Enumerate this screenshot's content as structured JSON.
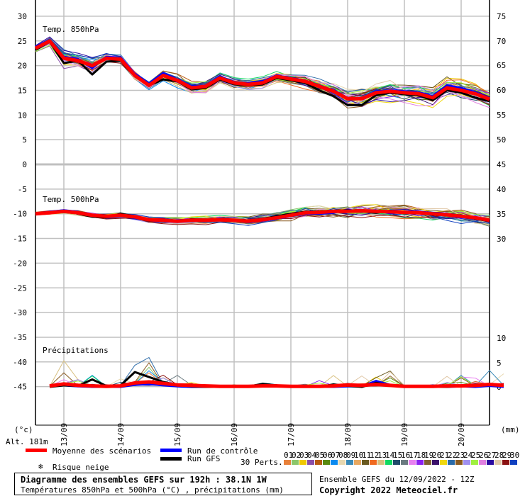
{
  "chart_data": {
    "type": "line",
    "title": "Diagramme des ensembles GEFS sur 192h : 38.1N 1W",
    "subtitle": "Températures 850hPa et 500hPa (°C) , précipitations (mm)",
    "run_info": "Ensemble GEFS du 12/09/2022 - 12Z",
    "copyright": "Copyright 2022 Meteociel.fr",
    "altitude": "Alt. 181m",
    "left_unit": "(°c)",
    "right_unit": "(mm)",
    "panel_850_label": "Temp. 850hPa",
    "panel_500_label": "Temp. 500hPa",
    "panel_precip_label": "Précipitations",
    "x_step_hours": 6,
    "x_tick_labels": [
      "13/09",
      "14/09",
      "15/09",
      "16/09",
      "17/09",
      "18/09",
      "19/09",
      "20/09"
    ],
    "left_ticks": [
      30,
      25,
      20,
      15,
      10,
      5,
      0,
      -5,
      -10,
      -15,
      -20,
      -25,
      -30,
      -35,
      -40,
      -45
    ],
    "right_ticks": [
      75,
      70,
      65,
      60,
      55,
      50,
      45,
      40,
      35,
      30,
      10,
      5,
      0
    ],
    "ylim": [
      -45,
      30
    ],
    "legend": {
      "mean": "Moyenne des scénarios",
      "control": "Run de contrôle",
      "gfs": "Run GFS",
      "snow": "Risque neige",
      "perts": "30 Perts."
    },
    "colors": {
      "mean": "#ff0000",
      "control": "#0000ff",
      "gfs": "#000000",
      "grid": "#c0c0c0"
    },
    "pert_colors": [
      "#e8803a",
      "#8cc66a",
      "#f0c800",
      "#8a4fa8",
      "#b85a10",
      "#5a8a10",
      "#0a8af0",
      "#e8d8b0",
      "#3a8ab8",
      "#e8a860",
      "#6a5a20",
      "#f06a20",
      "#d8c080",
      "#10d860",
      "#204a6a",
      "#6a7a80",
      "#e880f0",
      "#8a20f0",
      "#806030",
      "#3a106a",
      "#f0d810",
      "#2a6aa8",
      "#8a5a20",
      "#a090f0",
      "#a0f040",
      "#e080e0",
      "#2a0aa0",
      "#e0c8a8",
      "#8a1010",
      "#1040c0"
    ],
    "pert_labels": [
      "01",
      "02",
      "03",
      "04",
      "05",
      "06",
      "07",
      "08",
      "09",
      "10",
      "11",
      "12",
      "13",
      "14",
      "15",
      "16",
      "17",
      "18",
      "19",
      "20",
      "21",
      "22",
      "23",
      "24",
      "25",
      "26",
      "27",
      "28",
      "29",
      "30"
    ],
    "t850": {
      "mean": [
        23.5,
        25,
        21.5,
        21,
        20,
        21.5,
        21.3,
        18,
        16,
        18,
        17,
        15.5,
        15.8,
        17.5,
        16.5,
        16.2,
        16.5,
        17.8,
        17.3,
        16.8,
        15.8,
        14.8,
        13.3,
        13.3,
        14.5,
        14.8,
        14.5,
        14.3,
        13.5,
        15.5,
        15,
        14.3,
        13.2
      ],
      "control": [
        23.8,
        25.2,
        21.8,
        21.3,
        19.5,
        21.8,
        21.5,
        18.3,
        16.3,
        18.5,
        17.2,
        15.8,
        16,
        17.8,
        16.7,
        16.5,
        16.8,
        18,
        17.5,
        17,
        16,
        15,
        13.5,
        13.2,
        14.8,
        15,
        14.8,
        14.6,
        13.8,
        16,
        15.5,
        14.6,
        13.4
      ],
      "gfs": [
        23.2,
        24.8,
        20.5,
        21,
        18.2,
        20.8,
        21,
        17.8,
        16,
        17.2,
        16.8,
        15.2,
        15.5,
        17.2,
        16.2,
        16,
        16.2,
        17.5,
        17,
        16.5,
        15,
        13.8,
        12,
        12,
        14,
        14.5,
        14.2,
        14,
        13,
        15,
        14.5,
        13.5,
        12.8
      ],
      "spread": [
        0.8,
        1,
        1.8,
        1.5,
        1.8,
        1.2,
        1,
        1.2,
        1.2,
        1.2,
        1.4,
        1.5,
        1.5,
        1.4,
        1.4,
        1.4,
        1.3,
        1.2,
        1.3,
        1.5,
        2,
        2.2,
        2.5,
        2.5,
        2.3,
        2.5,
        2.5,
        2.5,
        2.5,
        2.5,
        2.5,
        2.3,
        1.8
      ]
    },
    "t500": {
      "mean": [
        -10,
        -9.8,
        -9.5,
        -9.8,
        -10.3,
        -10.5,
        -10.3,
        -10.6,
        -11.2,
        -11.3,
        -11.5,
        -11.3,
        -11.3,
        -11.2,
        -11.3,
        -11.5,
        -11.2,
        -10.8,
        -10.3,
        -9.8,
        -9.7,
        -9.5,
        -9.5,
        -9.4,
        -9.5,
        -9.6,
        -9.7,
        -9.8,
        -10,
        -10.2,
        -10.5,
        -10.8,
        -11.3
      ],
      "control": [
        -10,
        -9.6,
        -9.3,
        -9.6,
        -10.5,
        -10.6,
        -10.2,
        -10.8,
        -11,
        -11.4,
        -11.3,
        -11.2,
        -11.4,
        -11,
        -11.4,
        -11.7,
        -11.4,
        -11,
        -10.5,
        -10,
        -10,
        -9.8,
        -9.2,
        -9.6,
        -9.3,
        -9.9,
        -9.5,
        -9.6,
        -9.8,
        -10,
        -10.8,
        -10.6,
        -11.6
      ],
      "gfs": [
        -10,
        -9.7,
        -9.4,
        -10,
        -10.6,
        -10.7,
        -10,
        -10.5,
        -11.4,
        -11.2,
        -11.6,
        -11.1,
        -11.2,
        -11.3,
        -11.2,
        -11.6,
        -11,
        -10.5,
        -10,
        -9.6,
        -9.5,
        -9.4,
        -9.3,
        -9.5,
        -9.8,
        -9.4,
        -9.9,
        -9.7,
        -10.2,
        -10.3,
        -10.3,
        -11,
        -11.5
      ],
      "spread": [
        0.3,
        0.4,
        0.5,
        0.6,
        0.7,
        0.8,
        0.8,
        0.8,
        0.8,
        0.8,
        0.9,
        0.9,
        1,
        1,
        1,
        1,
        1.2,
        1.4,
        1.5,
        1.6,
        1.6,
        1.6,
        1.6,
        1.6,
        1.7,
        1.7,
        1.8,
        1.8,
        1.8,
        1.8,
        1.8,
        1.8,
        1.8
      ]
    },
    "precip": {
      "mean": [
        0.2,
        0.6,
        0.3,
        0.2,
        0.1,
        0.2,
        0.8,
        1,
        0.7,
        0.4,
        0.3,
        0.2,
        0.1,
        0.1,
        0.1,
        0.2,
        0.2,
        0.1,
        0.1,
        0.1,
        0.2,
        0.4,
        0.3,
        0.5,
        0.3,
        0.1,
        0.1,
        0.1,
        0.2,
        0.2,
        0.3,
        0.5,
        0.3
      ],
      "control": [
        0.1,
        0.3,
        0.1,
        0,
        0,
        0,
        0.4,
        0.6,
        0.3,
        0.1,
        0,
        0,
        0,
        0,
        0.1,
        0.1,
        0.2,
        0,
        0,
        0,
        0,
        0.1,
        0.1,
        1.2,
        0.4,
        0,
        0,
        0,
        0,
        0.1,
        0,
        0.2,
        0
      ],
      "gfs": [
        0,
        0.3,
        0.2,
        1.5,
        0.2,
        0.3,
        3,
        2,
        1,
        0.4,
        0.1,
        0,
        0,
        0,
        0.1,
        0.6,
        0.3,
        0,
        0,
        0,
        0.5,
        0.2,
        0,
        0.8,
        0.3,
        0,
        0,
        0,
        0,
        0.2,
        0.5,
        0.4,
        0.4
      ],
      "max": [
        0.3,
        6,
        1.5,
        2.5,
        0.5,
        2,
        4,
        5.5,
        1.5,
        4,
        0.8,
        0.4,
        0.2,
        0.3,
        0.4,
        0.8,
        0.3,
        0.2,
        0.5,
        1.5,
        3.5,
        1,
        3.5,
        1.5,
        3,
        0.3,
        0.2,
        0.5,
        3,
        2.5,
        1.5,
        6.5,
        4.5
      ]
    }
  }
}
